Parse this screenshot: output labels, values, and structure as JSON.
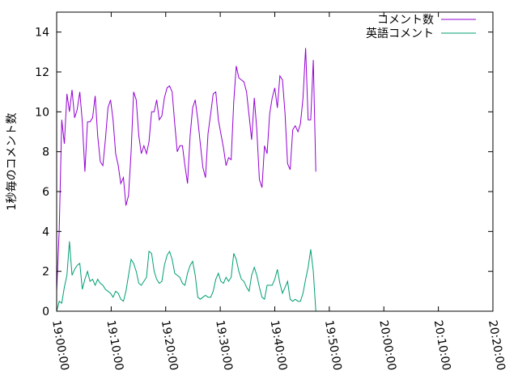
{
  "chart_data": {
    "type": "line",
    "title": "",
    "xlabel": "",
    "ylabel": "1秒毎のコメント数",
    "ylim": [
      0,
      15
    ],
    "yticks": [
      0,
      2,
      4,
      6,
      8,
      10,
      12,
      14
    ],
    "xlim_minutes": [
      0,
      80
    ],
    "xticks": [
      {
        "minute": 0,
        "label": "19:00:00"
      },
      {
        "minute": 10,
        "label": "19:10:00"
      },
      {
        "minute": 20,
        "label": "19:20:00"
      },
      {
        "minute": 30,
        "label": "19:30:00"
      },
      {
        "minute": 40,
        "label": "19:40:00"
      },
      {
        "minute": 50,
        "label": "19:50:00"
      },
      {
        "minute": 60,
        "label": "20:00:00"
      },
      {
        "minute": 70,
        "label": "20:10:00"
      },
      {
        "minute": 80,
        "label": "20:20:00"
      }
    ],
    "grid": false,
    "legend_position": "top-right",
    "series": [
      {
        "name": "コメント数",
        "color": "#9400d3",
        "points": [
          [
            0.0,
            1.0
          ],
          [
            0.47,
            4.1
          ],
          [
            0.94,
            9.6
          ],
          [
            1.41,
            8.4
          ],
          [
            1.88,
            10.9
          ],
          [
            2.35,
            10.0
          ],
          [
            2.82,
            11.1
          ],
          [
            3.29,
            9.7
          ],
          [
            3.76,
            10.1
          ],
          [
            4.24,
            11.0
          ],
          [
            4.71,
            9.5
          ],
          [
            5.18,
            7.0
          ],
          [
            5.65,
            9.5
          ],
          [
            6.12,
            9.5
          ],
          [
            6.59,
            9.7
          ],
          [
            7.06,
            10.8
          ],
          [
            7.53,
            8.8
          ],
          [
            8.0,
            7.5
          ],
          [
            8.47,
            7.3
          ],
          [
            8.94,
            8.6
          ],
          [
            9.41,
            10.2
          ],
          [
            9.88,
            10.6
          ],
          [
            10.35,
            9.6
          ],
          [
            10.82,
            7.9
          ],
          [
            11.29,
            7.3
          ],
          [
            11.76,
            6.4
          ],
          [
            12.24,
            6.7
          ],
          [
            12.71,
            5.3
          ],
          [
            13.18,
            5.8
          ],
          [
            13.65,
            8.0
          ],
          [
            14.12,
            11.0
          ],
          [
            14.59,
            10.6
          ],
          [
            15.06,
            8.8
          ],
          [
            15.53,
            7.9
          ],
          [
            16.0,
            8.3
          ],
          [
            16.47,
            7.9
          ],
          [
            16.94,
            8.5
          ],
          [
            17.41,
            10.0
          ],
          [
            17.88,
            10.0
          ],
          [
            18.35,
            10.6
          ],
          [
            18.82,
            9.6
          ],
          [
            19.29,
            9.8
          ],
          [
            19.76,
            10.7
          ],
          [
            20.24,
            11.2
          ],
          [
            20.71,
            11.3
          ],
          [
            21.18,
            11.0
          ],
          [
            21.65,
            9.4
          ],
          [
            22.12,
            8.0
          ],
          [
            22.59,
            8.3
          ],
          [
            23.06,
            8.3
          ],
          [
            23.53,
            7.3
          ],
          [
            24.0,
            6.4
          ],
          [
            24.47,
            8.8
          ],
          [
            24.94,
            10.2
          ],
          [
            25.41,
            10.6
          ],
          [
            25.88,
            9.6
          ],
          [
            26.35,
            8.4
          ],
          [
            26.82,
            7.2
          ],
          [
            27.29,
            6.7
          ],
          [
            27.76,
            8.9
          ],
          [
            28.24,
            9.9
          ],
          [
            28.71,
            10.9
          ],
          [
            29.18,
            11.0
          ],
          [
            29.65,
            9.6
          ],
          [
            30.12,
            8.9
          ],
          [
            30.59,
            8.2
          ],
          [
            31.06,
            7.3
          ],
          [
            31.53,
            7.7
          ],
          [
            32.0,
            7.6
          ],
          [
            32.47,
            10.5
          ],
          [
            32.94,
            12.3
          ],
          [
            33.41,
            11.7
          ],
          [
            33.88,
            11.6
          ],
          [
            34.35,
            11.5
          ],
          [
            34.82,
            11.0
          ],
          [
            35.29,
            9.8
          ],
          [
            35.76,
            8.6
          ],
          [
            36.24,
            10.7
          ],
          [
            36.71,
            9.1
          ],
          [
            37.18,
            6.6
          ],
          [
            37.65,
            6.2
          ],
          [
            38.12,
            8.3
          ],
          [
            38.59,
            7.9
          ],
          [
            39.06,
            9.9
          ],
          [
            39.53,
            10.7
          ],
          [
            40.0,
            11.2
          ],
          [
            40.47,
            10.2
          ],
          [
            40.94,
            11.8
          ],
          [
            41.41,
            11.6
          ],
          [
            41.88,
            9.9
          ],
          [
            42.35,
            7.4
          ],
          [
            42.82,
            7.1
          ],
          [
            43.29,
            9.1
          ],
          [
            43.76,
            9.3
          ],
          [
            44.24,
            9.0
          ],
          [
            44.71,
            9.4
          ],
          [
            45.18,
            10.7
          ],
          [
            45.65,
            13.2
          ],
          [
            46.12,
            9.6
          ],
          [
            46.59,
            9.6
          ],
          [
            47.06,
            12.6
          ],
          [
            47.53,
            7.0
          ]
        ]
      },
      {
        "name": "英語コメント",
        "color": "#009e73",
        "points": [
          [
            0.0,
            0.0
          ],
          [
            0.47,
            0.5
          ],
          [
            0.94,
            0.4
          ],
          [
            1.41,
            1.2
          ],
          [
            1.88,
            1.8
          ],
          [
            2.35,
            3.5
          ],
          [
            2.82,
            1.8
          ],
          [
            3.29,
            2.1
          ],
          [
            3.76,
            2.3
          ],
          [
            4.24,
            2.4
          ],
          [
            4.71,
            1.1
          ],
          [
            5.18,
            1.6
          ],
          [
            5.65,
            2.0
          ],
          [
            6.12,
            1.5
          ],
          [
            6.59,
            1.6
          ],
          [
            7.06,
            1.3
          ],
          [
            7.53,
            1.6
          ],
          [
            8.0,
            1.4
          ],
          [
            8.47,
            1.3
          ],
          [
            8.94,
            1.1
          ],
          [
            9.41,
            1.0
          ],
          [
            9.88,
            0.9
          ],
          [
            10.35,
            0.7
          ],
          [
            10.82,
            1.0
          ],
          [
            11.29,
            0.9
          ],
          [
            11.76,
            0.6
          ],
          [
            12.24,
            0.5
          ],
          [
            12.71,
            1.0
          ],
          [
            13.18,
            1.8
          ],
          [
            13.65,
            2.6
          ],
          [
            14.12,
            2.4
          ],
          [
            14.59,
            2.0
          ],
          [
            15.06,
            1.4
          ],
          [
            15.53,
            1.3
          ],
          [
            16.0,
            1.5
          ],
          [
            16.47,
            1.7
          ],
          [
            16.94,
            3.0
          ],
          [
            17.41,
            2.9
          ],
          [
            17.88,
            2.0
          ],
          [
            18.35,
            1.6
          ],
          [
            18.82,
            1.4
          ],
          [
            19.29,
            1.5
          ],
          [
            19.76,
            2.3
          ],
          [
            20.24,
            2.8
          ],
          [
            20.71,
            3.0
          ],
          [
            21.18,
            2.6
          ],
          [
            21.65,
            1.9
          ],
          [
            22.12,
            1.8
          ],
          [
            22.59,
            1.7
          ],
          [
            23.06,
            1.4
          ],
          [
            23.53,
            1.3
          ],
          [
            24.0,
            1.9
          ],
          [
            24.47,
            2.3
          ],
          [
            24.94,
            2.5
          ],
          [
            25.41,
            1.8
          ],
          [
            25.88,
            0.7
          ],
          [
            26.35,
            0.6
          ],
          [
            26.82,
            0.7
          ],
          [
            27.29,
            0.8
          ],
          [
            27.76,
            0.7
          ],
          [
            28.24,
            0.7
          ],
          [
            28.71,
            1.0
          ],
          [
            29.18,
            1.6
          ],
          [
            29.65,
            1.9
          ],
          [
            30.12,
            1.5
          ],
          [
            30.59,
            1.4
          ],
          [
            31.06,
            1.7
          ],
          [
            31.53,
            1.5
          ],
          [
            32.0,
            1.7
          ],
          [
            32.47,
            2.9
          ],
          [
            32.94,
            2.6
          ],
          [
            33.41,
            2.0
          ],
          [
            33.88,
            1.6
          ],
          [
            34.35,
            1.5
          ],
          [
            34.82,
            1.2
          ],
          [
            35.29,
            1.0
          ],
          [
            35.76,
            1.8
          ],
          [
            36.24,
            2.2
          ],
          [
            36.71,
            1.8
          ],
          [
            37.18,
            1.2
          ],
          [
            37.65,
            0.7
          ],
          [
            38.12,
            0.6
          ],
          [
            38.59,
            1.3
          ],
          [
            39.06,
            1.3
          ],
          [
            39.53,
            1.3
          ],
          [
            40.0,
            1.6
          ],
          [
            40.47,
            2.1
          ],
          [
            40.94,
            1.4
          ],
          [
            41.41,
            0.9
          ],
          [
            41.88,
            1.2
          ],
          [
            42.35,
            1.5
          ],
          [
            42.82,
            0.6
          ],
          [
            43.29,
            0.5
          ],
          [
            43.76,
            0.6
          ],
          [
            44.24,
            0.5
          ],
          [
            44.71,
            0.5
          ],
          [
            45.18,
            0.9
          ],
          [
            45.65,
            1.6
          ],
          [
            46.12,
            2.2
          ],
          [
            46.59,
            3.1
          ],
          [
            47.06,
            2.0
          ],
          [
            47.53,
            0.0
          ]
        ]
      }
    ]
  }
}
